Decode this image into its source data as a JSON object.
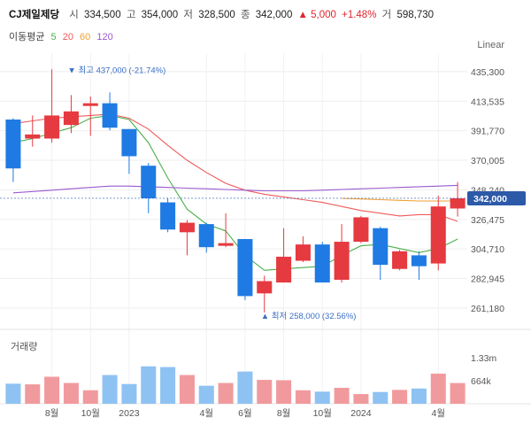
{
  "header": {
    "name": "CJ제일제당",
    "open_label": "시",
    "open": "334,500",
    "high_label": "고",
    "high": "354,000",
    "low_label": "저",
    "low": "328,500",
    "close_label": "종",
    "close": "342,000",
    "change": "▲ 5,000",
    "change_pct": "+1.48%",
    "volume_label": "거",
    "volume": "598,730"
  },
  "moving_average": {
    "label": "이동평균",
    "periods": [
      {
        "value": "5",
        "color": "#4cb04c"
      },
      {
        "value": "20",
        "color": "#ef5a5a"
      },
      {
        "value": "60",
        "color": "#f0a030"
      },
      {
        "value": "120",
        "color": "#9b59d0"
      }
    ]
  },
  "scale_mode": "Linear",
  "volume_title": "거래량",
  "colors": {
    "up": "#e53a40",
    "down": "#1f7be3",
    "up_vol": "#f19a9e",
    "down_vol": "#8ec2f2"
  },
  "chart_data": {
    "type": "candlestick",
    "y_ticks": [
      261180,
      282945,
      304710,
      326475,
      348240,
      370005,
      391770,
      413535,
      435300
    ],
    "y_tick_labels": [
      "261,180",
      "282,945",
      "304,710",
      "326,475",
      "348,240",
      "370,005",
      "391,770",
      "413,535",
      "435,300"
    ],
    "ylim": [
      252000,
      445000
    ],
    "current_price": 342000,
    "current_price_label": "342,000",
    "max_annotation": {
      "label": "▼ 최고 437,000 (-21.74%)",
      "index": 3,
      "value": 437000
    },
    "min_annotation": {
      "label": "▲ 최저 258,000 (32.56%)",
      "index": 13,
      "value": 258000
    },
    "x_tick_labels": [
      {
        "label": "8월",
        "index": 2
      },
      {
        "label": "10월",
        "index": 4
      },
      {
        "label": "2023",
        "index": 6
      },
      {
        "label": "4월",
        "index": 10
      },
      {
        "label": "6월",
        "index": 12
      },
      {
        "label": "8월",
        "index": 14
      },
      {
        "label": "10월",
        "index": 16
      },
      {
        "label": "2024",
        "index": 18
      },
      {
        "label": "4월",
        "index": 22
      }
    ],
    "candles": [
      {
        "open": 400000,
        "close": 364000,
        "high": 401000,
        "low": 354000,
        "volume": 580000
      },
      {
        "open": 386000,
        "close": 389000,
        "high": 403000,
        "low": 380000,
        "volume": 560000
      },
      {
        "open": 386000,
        "close": 403000,
        "high": 437000,
        "low": 383000,
        "volume": 780000
      },
      {
        "open": 396000,
        "close": 406000,
        "high": 418000,
        "low": 390000,
        "volume": 600000
      },
      {
        "open": 410000,
        "close": 412000,
        "high": 417000,
        "low": 388000,
        "volume": 390000
      },
      {
        "open": 412000,
        "close": 394000,
        "high": 420000,
        "low": 392000,
        "volume": 830000
      },
      {
        "open": 393000,
        "close": 373000,
        "high": 392000,
        "low": 360000,
        "volume": 570000
      },
      {
        "open": 366000,
        "close": 342000,
        "high": 368000,
        "low": 331000,
        "volume": 1080000
      },
      {
        "open": 339000,
        "close": 319000,
        "high": 342000,
        "low": 317000,
        "volume": 1060000
      },
      {
        "open": 317000,
        "close": 324000,
        "high": 326000,
        "low": 300000,
        "volume": 830000
      },
      {
        "open": 323000,
        "close": 306000,
        "high": 324000,
        "low": 302000,
        "volume": 520000
      },
      {
        "open": 307000,
        "close": 309000,
        "high": 331000,
        "low": 306000,
        "volume": 600000
      },
      {
        "open": 312000,
        "close": 270000,
        "high": 312000,
        "low": 267000,
        "volume": 930000
      },
      {
        "open": 272000,
        "close": 281000,
        "high": 285000,
        "low": 258000,
        "volume": 690000
      },
      {
        "open": 280000,
        "close": 299000,
        "high": 320000,
        "low": 280000,
        "volume": 680000
      },
      {
        "open": 296000,
        "close": 308000,
        "high": 314000,
        "low": 295000,
        "volume": 390000
      },
      {
        "open": 308000,
        "close": 280000,
        "high": 310000,
        "low": 280000,
        "volume": 350000
      },
      {
        "open": 282000,
        "close": 310000,
        "high": 323000,
        "low": 280000,
        "volume": 460000
      },
      {
        "open": 310000,
        "close": 328000,
        "high": 329000,
        "low": 309000,
        "volume": 280000
      },
      {
        "open": 320000,
        "close": 293000,
        "high": 321000,
        "low": 282000,
        "volume": 340000
      },
      {
        "open": 290000,
        "close": 303000,
        "high": 304000,
        "low": 289000,
        "volume": 400000
      },
      {
        "open": 300000,
        "close": 292000,
        "high": 303000,
        "low": 282000,
        "volume": 440000
      },
      {
        "open": 294000,
        "close": 336000,
        "high": 344000,
        "low": 289000,
        "volume": 870000
      },
      {
        "open": 334500,
        "close": 342000,
        "high": 354000,
        "low": 328500,
        "volume": 598730
      }
    ],
    "ma_lines": [
      {
        "name": "5",
        "color": "#4cb04c",
        "values": [
          383000,
          386000,
          390000,
          394000,
          401000,
          403000,
          400000,
          383000,
          357000,
          334000,
          323000,
          318000,
          300000,
          289000,
          290000,
          291000,
          292000,
          300000,
          307000,
          308000,
          305000,
          302000,
          305000,
          312000
        ]
      },
      {
        "name": "20",
        "color": "#ef5a5a",
        "values": [
          397000,
          399000,
          401000,
          402000,
          403000,
          404000,
          401000,
          393000,
          381000,
          370000,
          361000,
          353000,
          348000,
          345000,
          343000,
          341000,
          339000,
          336000,
          333000,
          331000,
          329000,
          330000,
          330000,
          325000
        ]
      },
      {
        "name": "60",
        "color": "#f0a030",
        "values": [
          null,
          null,
          null,
          null,
          null,
          null,
          null,
          null,
          null,
          null,
          null,
          null,
          null,
          null,
          null,
          null,
          null,
          342000,
          341500,
          341000,
          340500,
          340000,
          340000,
          340000
        ]
      },
      {
        "name": "120",
        "color": "#9b59d0",
        "values": [
          346000,
          347000,
          348000,
          349000,
          350000,
          351000,
          351000,
          350500,
          350000,
          349500,
          349000,
          348500,
          348000,
          347500,
          347500,
          347500,
          348000,
          348500,
          349000,
          349500,
          350000,
          350500,
          351000,
          351500
        ]
      }
    ],
    "volume_ticks": [
      {
        "label": "1.33m",
        "value": 1330000
      },
      {
        "label": "664k",
        "value": 664000
      }
    ],
    "volume_max": 1330000
  }
}
